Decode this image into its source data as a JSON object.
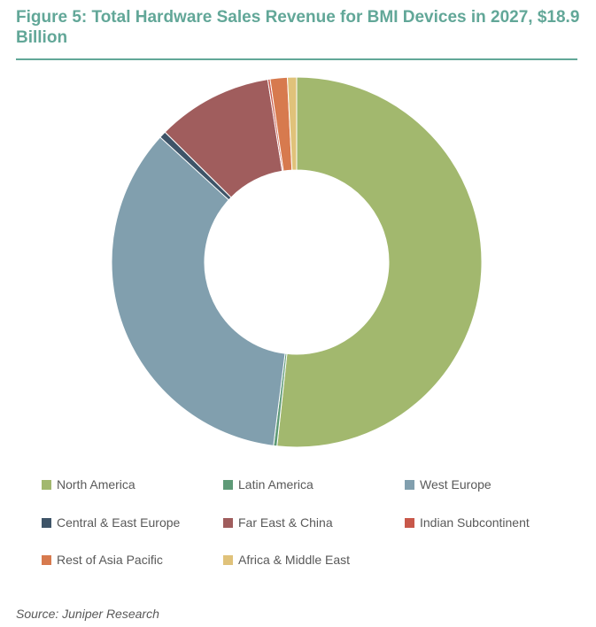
{
  "title": "Figure 5: Total Hardware Sales Revenue for BMI Devices in 2027, $18.9 Billion",
  "source": "Source: Juniper Research",
  "chart_data": {
    "type": "pie",
    "donut": true,
    "title": "Figure 5: Total Hardware Sales Revenue for BMI Devices in 2027, $18.9 Billion",
    "legend_position": "bottom",
    "series": [
      {
        "name": "North America",
        "value": 51.7,
        "color": "#a2b86e"
      },
      {
        "name": "Latin America",
        "value": 0.3,
        "color": "#5e9a77"
      },
      {
        "name": "West Europe",
        "value": 34.8,
        "color": "#819fae"
      },
      {
        "name": "Central & East Europe",
        "value": 0.6,
        "color": "#3e5468"
      },
      {
        "name": "Far East & China",
        "value": 10.1,
        "color": "#a05d5d"
      },
      {
        "name": "Indian Subcontinent",
        "value": 0.2,
        "color": "#c8584a"
      },
      {
        "name": "Rest of Asia Pacific",
        "value": 1.5,
        "color": "#d77a4e"
      },
      {
        "name": "Africa & Middle East",
        "value": 0.8,
        "color": "#e0c27a"
      }
    ]
  }
}
